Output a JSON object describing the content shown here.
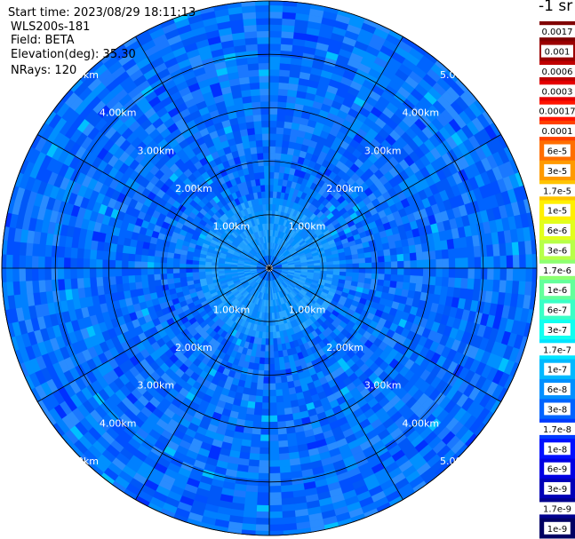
{
  "header": {
    "start_time": "Start time: 2023/08/29 18:11:13",
    "instrument": "WLS200s-181",
    "field": "Field: BETA",
    "elevation": "Elevation(deg): 35.30",
    "nrays": "NRays: 120"
  },
  "colorbar": {
    "unit_label": "-1 sr",
    "log_scale": true,
    "ticks": [
      {
        "label": "0.0017",
        "color": "#800000"
      },
      {
        "label": "0.001",
        "color": "#9b0000"
      },
      {
        "label": "0.0006",
        "color": "#c00000"
      },
      {
        "label": "0.0003",
        "color": "#e50000"
      },
      {
        "label": "0.00017",
        "color": "#ff1400"
      },
      {
        "label": "0.0001",
        "color": "#ff4000"
      },
      {
        "label": "6e-5",
        "color": "#ff6e00"
      },
      {
        "label": "3e-5",
        "color": "#ff9a00"
      },
      {
        "label": "1.7e-5",
        "color": "#ffc400"
      },
      {
        "label": "1e-5",
        "color": "#fff000"
      },
      {
        "label": "6e-6",
        "color": "#e2ff1d"
      },
      {
        "label": "3e-6",
        "color": "#b7ff48"
      },
      {
        "label": "1.7e-6",
        "color": "#8dff71"
      },
      {
        "label": "1e-6",
        "color": "#63ff9b"
      },
      {
        "label": "6e-7",
        "color": "#39ffc6"
      },
      {
        "label": "3e-7",
        "color": "#10fff0"
      },
      {
        "label": "1.7e-7",
        "color": "#00e4ff"
      },
      {
        "label": "1e-7",
        "color": "#00b9ff"
      },
      {
        "label": "6e-8",
        "color": "#0090ff"
      },
      {
        "label": "3e-8",
        "color": "#0064ff"
      },
      {
        "label": "1.7e-8",
        "color": "#003aff"
      },
      {
        "label": "1e-8",
        "color": "#0010ff"
      },
      {
        "label": "6e-9",
        "color": "#0000e3"
      },
      {
        "label": "3e-9",
        "color": "#0000b8"
      },
      {
        "label": "1.7e-9",
        "color": "#00008d"
      },
      {
        "label": "1e-9",
        "color": "#000063"
      }
    ]
  },
  "chart_data": {
    "type": "heatmap",
    "projection": "polar (plan position indicator)",
    "field": "BETA",
    "rings_km": [
      1,
      2,
      3,
      4,
      5
    ],
    "ring_labels": [
      "1.00km",
      "2.00km",
      "3.00km",
      "4.00km",
      "5.00km"
    ],
    "spokes_deg": [
      0,
      30,
      60,
      90,
      120,
      150,
      180,
      210,
      240,
      270,
      300,
      330
    ],
    "max_range_km": 5.0,
    "num_rays": 120,
    "dominant_value_range": [
      "1.7e-8",
      "1e-7"
    ],
    "inner_region": {
      "radius_km": [
        0.2,
        1.3
      ],
      "approx_value": "6e-8"
    },
    "outer_region": {
      "radius_km": [
        1.3,
        5.0
      ],
      "approx_value": "3e-8"
    }
  }
}
